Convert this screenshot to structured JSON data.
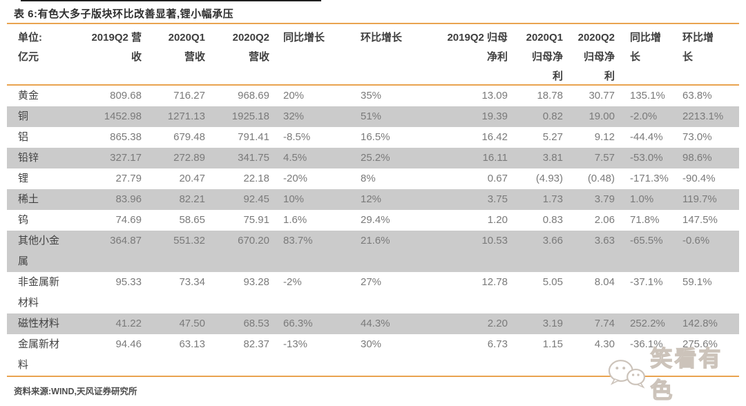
{
  "page": {
    "title": "表 6:有色大多子版块环比改善显著,锂小幅承压",
    "source": "资料来源:WIND,天风证券研究所",
    "watermark": "笑看有色"
  },
  "colors": {
    "accent_orange": "#E9A34F",
    "stripe_gray": "#CBCBCB",
    "title_text": "#2F2F2F",
    "label_text": "#424242",
    "cell_text": "#7A7A7A",
    "watermark_gray": "#CCC3BA",
    "top_rule_dark": "#1F1F1F"
  },
  "display": {
    "headers": [
      "单位:\n亿元",
      "2019Q2 营\n收",
      "2020Q1\n营收",
      "2020Q2\n营收",
      "同比增长",
      "环比增长",
      "2019Q2 归母\n净利",
      "2020Q1\n归母净\n利",
      "2020Q2\n归母净\n利",
      "同比增\n长",
      "环比增\n长"
    ]
  },
  "chart_data": {
    "type": "table",
    "title": "表 6:有色大多子版块环比改善显著,锂小幅承压",
    "unit": "亿元",
    "columns": [
      "单位:亿元",
      "2019Q2 营收",
      "2020Q1 营收",
      "2020Q2 营收",
      "同比增长",
      "环比增长",
      "2019Q2 归母净利",
      "2020Q1 归母净利",
      "2020Q2 归母净利",
      "同比增长",
      "环比增长"
    ],
    "rows": [
      {
        "label": "黄金",
        "values": [
          "809.68",
          "716.27",
          "968.69",
          "20%",
          "35%",
          "13.09",
          "18.78",
          "30.77",
          "135.1%",
          "63.8%"
        ]
      },
      {
        "label": "铜",
        "values": [
          "1452.98",
          "1271.13",
          "1925.18",
          "32%",
          "51%",
          "19.39",
          "0.82",
          "19.00",
          "-2.0%",
          "2213.1%"
        ]
      },
      {
        "label": "铝",
        "values": [
          "865.38",
          "679.48",
          "791.41",
          "-8.5%",
          "16.5%",
          "16.42",
          "5.27",
          "9.12",
          "-44.4%",
          "73.0%"
        ]
      },
      {
        "label": "铅锌",
        "values": [
          "327.17",
          "272.89",
          "341.75",
          "4.5%",
          "25.2%",
          "16.11",
          "3.81",
          "7.57",
          "-53.0%",
          "98.6%"
        ]
      },
      {
        "label": "锂",
        "values": [
          "27.79",
          "20.47",
          "22.18",
          "-20%",
          "8%",
          "0.67",
          "(4.93)",
          "(0.48)",
          "-171.3%",
          "-90.4%"
        ]
      },
      {
        "label": "稀土",
        "values": [
          "83.96",
          "82.21",
          "92.45",
          "10%",
          "12%",
          "3.75",
          "1.73",
          "3.79",
          "1.0%",
          "119.7%"
        ]
      },
      {
        "label": "钨",
        "values": [
          "74.69",
          "58.65",
          "75.91",
          "1.6%",
          "29.4%",
          "1.20",
          "0.83",
          "2.06",
          "71.8%",
          "147.5%"
        ]
      },
      {
        "label": "其他小金属",
        "values": [
          "364.87",
          "551.32",
          "670.20",
          "83.7%",
          "21.6%",
          "10.53",
          "3.66",
          "3.63",
          "-65.5%",
          "-0.6%"
        ]
      },
      {
        "label": "非金属新材料",
        "values": [
          "95.33",
          "73.34",
          "93.28",
          "-2%",
          "27%",
          "12.78",
          "5.05",
          "8.04",
          "-37.1%",
          "59.1%"
        ]
      },
      {
        "label": "磁性材料",
        "values": [
          "41.22",
          "47.50",
          "68.53",
          "66.3%",
          "44.3%",
          "2.20",
          "3.19",
          "7.74",
          "252.2%",
          "142.8%"
        ]
      },
      {
        "label": "金属新材料",
        "values": [
          "94.46",
          "63.13",
          "82.37",
          "-13%",
          "30%",
          "6.73",
          "1.15",
          "4.30",
          "-36.1%",
          "275.6%"
        ]
      }
    ]
  }
}
